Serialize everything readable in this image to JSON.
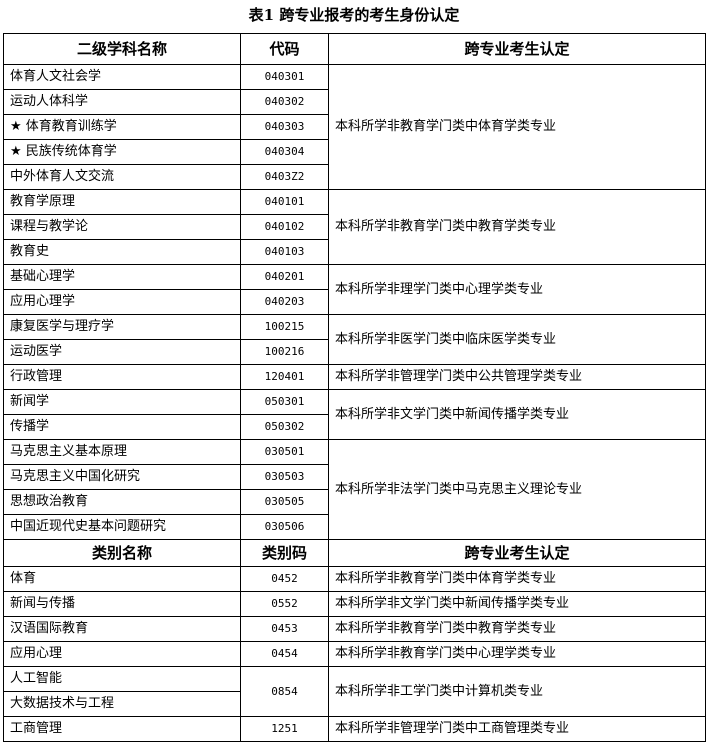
{
  "title": "表1 跨专业报考的考生身份认定",
  "section1": {
    "headers": [
      "二级学科名称",
      "代码",
      "跨专业考生认定"
    ],
    "groups": [
      {
        "identification": "本科所学非教育学门类中体育学类专业",
        "rows": [
          {
            "name": "体育人文社会学",
            "code": "040301"
          },
          {
            "name": "运动人体科学",
            "code": "040302"
          },
          {
            "name": "★ 体育教育训练学",
            "code": "040303"
          },
          {
            "name": "★ 民族传统体育学",
            "code": "040304"
          },
          {
            "name": "中外体育人文交流",
            "code": "0403Z2"
          }
        ]
      },
      {
        "identification": "本科所学非教育学门类中教育学类专业",
        "rows": [
          {
            "name": "教育学原理",
            "code": "040101"
          },
          {
            "name": "课程与教学论",
            "code": "040102"
          },
          {
            "name": "教育史",
            "code": "040103"
          }
        ]
      },
      {
        "identification": "本科所学非理学门类中心理学类专业",
        "rows": [
          {
            "name": "基础心理学",
            "code": "040201"
          },
          {
            "name": "应用心理学",
            "code": "040203"
          }
        ]
      },
      {
        "identification": "本科所学非医学门类中临床医学类专业",
        "rows": [
          {
            "name": "康复医学与理疗学",
            "code": "100215"
          },
          {
            "name": "运动医学",
            "code": "100216"
          }
        ]
      },
      {
        "identification": "本科所学非管理学门类中公共管理学类专业",
        "rows": [
          {
            "name": "行政管理",
            "code": "120401"
          }
        ]
      },
      {
        "identification": "本科所学非文学门类中新闻传播学类专业",
        "rows": [
          {
            "name": "新闻学",
            "code": "050301"
          },
          {
            "name": "传播学",
            "code": "050302"
          }
        ]
      },
      {
        "identification": "本科所学非法学门类中马克思主义理论专业",
        "rows": [
          {
            "name": "马克思主义基本原理",
            "code": "030501"
          },
          {
            "name": "马克思主义中国化研究",
            "code": "030503"
          },
          {
            "name": "思想政治教育",
            "code": "030505"
          },
          {
            "name": "中国近现代史基本问题研究",
            "code": "030506"
          }
        ]
      }
    ]
  },
  "section2": {
    "headers": [
      "类别名称",
      "类别码",
      "跨专业考生认定"
    ],
    "groups": [
      {
        "code": "0452",
        "identification": "本科所学非教育学门类中体育学类专业",
        "names": [
          "体育"
        ]
      },
      {
        "code": "0552",
        "identification": "本科所学非文学门类中新闻传播学类专业",
        "names": [
          "新闻与传播"
        ]
      },
      {
        "code": "0453",
        "identification": "本科所学非教育学门类中教育学类专业",
        "names": [
          "汉语国际教育"
        ]
      },
      {
        "code": "0454",
        "identification": "本科所学非教育学门类中心理学类专业",
        "names": [
          "应用心理"
        ]
      },
      {
        "code": "0854",
        "identification": "本科所学非工学门类中计算机类专业",
        "names": [
          "人工智能",
          "大数据技术与工程"
        ]
      },
      {
        "code": "1251",
        "identification": "本科所学非管理学门类中工商管理类专业",
        "names": [
          "工商管理"
        ]
      }
    ]
  }
}
